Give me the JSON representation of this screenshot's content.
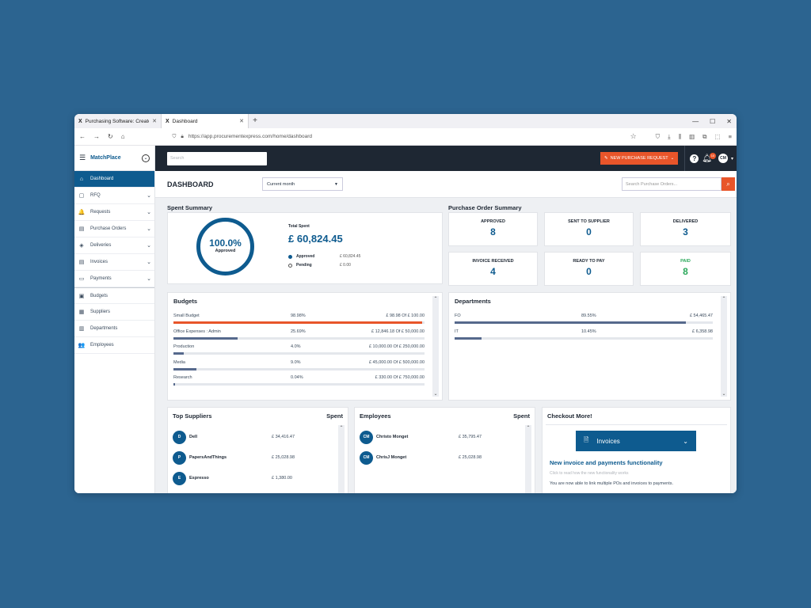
{
  "browser": {
    "tabs": [
      {
        "title": "Purchasing Software: Create Pu",
        "active": false
      },
      {
        "title": "Dashboard",
        "active": true
      }
    ],
    "new_tab": "+",
    "url": "https://app.procurementexpress.com/home/dashboard"
  },
  "sidebar": {
    "brand": "MatchPlace",
    "items": [
      {
        "label": "Dashboard",
        "icon": "home-icon",
        "glyph": "⌂",
        "active": true,
        "chevron": ""
      },
      {
        "label": "RFQ",
        "icon": "document-icon",
        "glyph": "▢",
        "active": false,
        "chevron": "⌄"
      },
      {
        "label": "Requests",
        "icon": "bell-icon",
        "glyph": "🔔",
        "active": false,
        "chevron": "⌄"
      },
      {
        "label": "Purchase Orders",
        "icon": "file-icon",
        "glyph": "▤",
        "active": false,
        "chevron": "⌄"
      },
      {
        "label": "Deliveries",
        "icon": "box-icon",
        "glyph": "◈",
        "active": false,
        "chevron": "⌄"
      },
      {
        "label": "Invoices",
        "icon": "invoice-icon",
        "glyph": "▤",
        "active": false,
        "chevron": "⌄"
      },
      {
        "label": "Payments",
        "icon": "payment-icon",
        "glyph": "▭",
        "active": false,
        "chevron": "⌄"
      },
      {
        "label": "Budgets",
        "icon": "briefcase-icon",
        "glyph": "▣",
        "active": false,
        "chevron": ""
      },
      {
        "label": "Suppliers",
        "icon": "truck-icon",
        "glyph": "▦",
        "active": false,
        "chevron": ""
      },
      {
        "label": "Departments",
        "icon": "building-icon",
        "glyph": "▥",
        "active": false,
        "chevron": ""
      },
      {
        "label": "Employees",
        "icon": "users-icon",
        "glyph": "👥",
        "active": false,
        "chevron": ""
      }
    ]
  },
  "topbar": {
    "search_placeholder": "Search",
    "new_request_label": "NEW PURCHASE REQUEST",
    "notification_count": "10",
    "user_initials": "CM"
  },
  "header": {
    "title": "DASHBOARD",
    "period": "Current month",
    "po_search_placeholder": "Search Purchase Orders..."
  },
  "spent_summary": {
    "title": "Spent Summary",
    "percent": "100.0%",
    "percent_label": "Approved",
    "total_label": "Total Spent",
    "total": "£ 60,824.45",
    "legend": [
      {
        "name": "Approved",
        "value": "£ 60,824.45",
        "color": "#0e5b8f"
      },
      {
        "name": "Pending",
        "value": "£ 0.00",
        "color": "#ffffff"
      }
    ]
  },
  "po_summary": {
    "title": "Purchase Order Summary",
    "cards": [
      {
        "label": "APPROVED",
        "count": "8"
      },
      {
        "label": "SENT TO SUPPLIER",
        "count": "0"
      },
      {
        "label": "DELIVERED",
        "count": "3"
      },
      {
        "label": "INVOICE RECEIVED",
        "count": "4"
      },
      {
        "label": "READY TO PAY",
        "count": "0"
      },
      {
        "label": "PAID",
        "count": "8"
      }
    ]
  },
  "budgets": {
    "title": "Budgets",
    "rows": [
      {
        "name": "Small Budget",
        "pct": "98.98%",
        "amount": "£ 98.98 Of £ 100.00",
        "fill": 0.9898,
        "over": true
      },
      {
        "name": "Office Expenses : Admin",
        "pct": "25.69%",
        "amount": "£ 12,846.18 Of £ 50,000.00",
        "fill": 0.2569,
        "over": false
      },
      {
        "name": "Production",
        "pct": "4.0%",
        "amount": "£ 10,000.00 Of £ 250,000.00",
        "fill": 0.04,
        "over": false
      },
      {
        "name": "Media",
        "pct": "9.0%",
        "amount": "£ 45,000.00 Of £ 500,000.00",
        "fill": 0.09,
        "over": false
      },
      {
        "name": "Research",
        "pct": "0.04%",
        "amount": "£ 330.00 Of £ 750,000.00",
        "fill": 0.0004,
        "over": false
      }
    ]
  },
  "departments": {
    "title": "Departments",
    "rows": [
      {
        "name": "FO",
        "pct": "89.55%",
        "amount": "£ 54,465.47",
        "fill": 0.8955
      },
      {
        "name": "IT",
        "pct": "10.45%",
        "amount": "£ 6,358.98",
        "fill": 0.1045
      }
    ]
  },
  "top_suppliers": {
    "title": "Top Suppliers",
    "col": "Spent",
    "rows": [
      {
        "initial": "D",
        "name": "Dell",
        "amount": "£ 34,416.47"
      },
      {
        "initial": "P",
        "name": "PapersAndThings",
        "amount": "£ 25,028.98"
      },
      {
        "initial": "E",
        "name": "Espresso",
        "amount": "£ 1,380.00"
      }
    ]
  },
  "employees": {
    "title": "Employees",
    "col": "Spent",
    "rows": [
      {
        "initial": "CM",
        "name": "Christo Monget",
        "amount": "£ 35,795.47"
      },
      {
        "initial": "CM",
        "name": "ChrisJ Monget",
        "amount": "£ 25,028.98"
      }
    ]
  },
  "checkout": {
    "title": "Checkout More!",
    "button_label": "Invoices",
    "headline": "New invoice and payments functionality",
    "link": "Click to read how the new functionality works",
    "text": "You are now able to link multiple POs and invoices to payments."
  }
}
